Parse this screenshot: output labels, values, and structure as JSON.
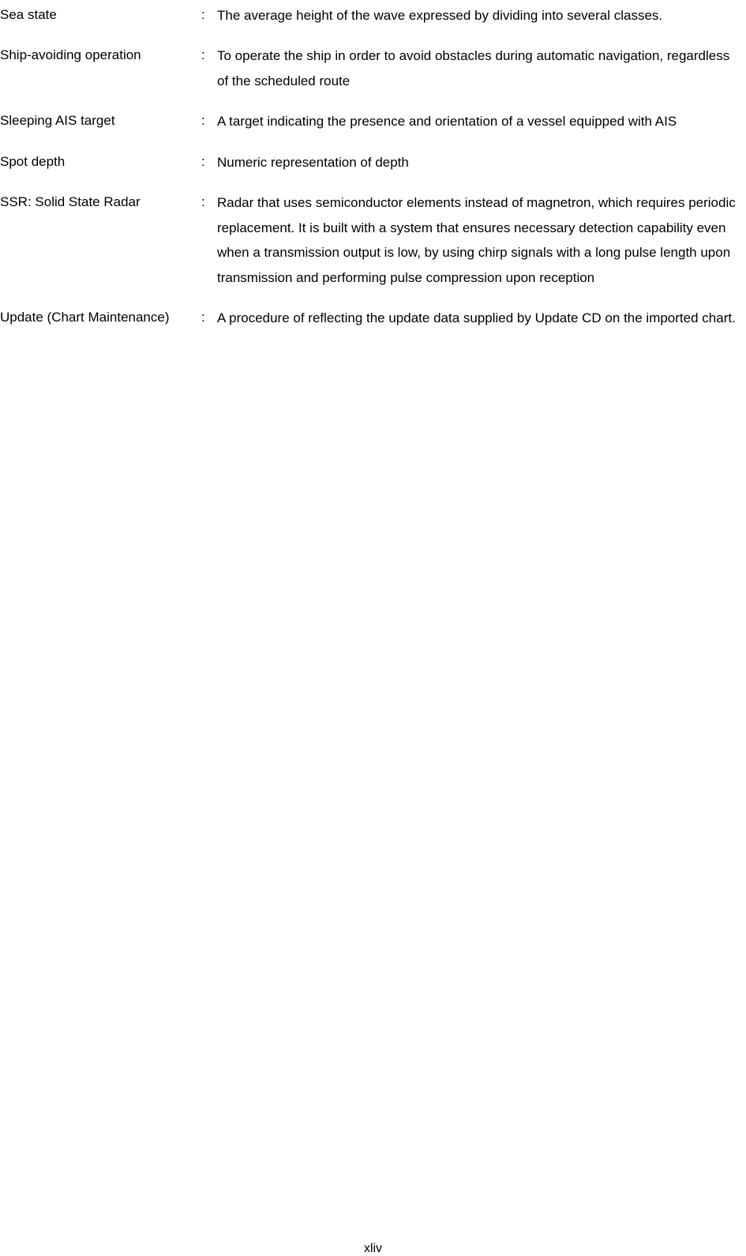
{
  "glossary": {
    "entries": [
      {
        "term": "Sea state",
        "definition": "The average height of the wave expressed by dividing into several classes."
      },
      {
        "term": "Ship-avoiding operation",
        "definition": "To operate the ship in order to avoid obstacles during automatic navigation, regardless of the scheduled route"
      },
      {
        "term": "Sleeping AIS target",
        "definition": "A target indicating the presence and orientation of a vessel equipped with AIS"
      },
      {
        "term": "Spot depth",
        "definition": "Numeric representation of depth"
      },
      {
        "term": "SSR: Solid State Radar",
        "definition": "Radar that uses semiconductor elements instead of magnetron, which requires periodic replacement. It is built with a system that ensures necessary detection capability even when a transmission output is low, by using chirp signals with a long pulse length upon transmission and performing pulse compression upon reception"
      },
      {
        "term": "Update (Chart Maintenance)",
        "definition": "A procedure of reflecting the update data supplied by Update CD on the imported chart."
      }
    ]
  },
  "pageNumber": "xliv",
  "style": {
    "background_color": "#ffffff",
    "text_color": "#000000",
    "font_family": "Arial, Helvetica, sans-serif",
    "base_font_size": 17,
    "line_height": 1.85,
    "term_column_width": 255,
    "colon_column_width": 20,
    "entry_spacing": 20
  }
}
